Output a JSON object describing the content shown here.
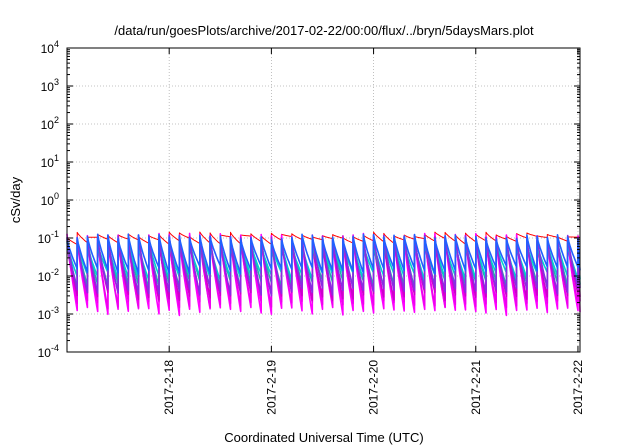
{
  "chart_data": {
    "type": "line",
    "title": "/data/run/goesPlots/archive/2017-02-22/00:00/flux/../bryn/5daysMars.plot",
    "xlabel": "Coordinated Universal Time (UTC)",
    "ylabel": "cSv/day",
    "x_range_days": [
      17.0,
      22.02
    ],
    "x_ticks": [
      {
        "value": 18,
        "label": "2017-2-18"
      },
      {
        "value": 19,
        "label": "2017-2-19"
      },
      {
        "value": 20,
        "label": "2017-2-20"
      },
      {
        "value": 21,
        "label": "2017-2-21"
      },
      {
        "value": 22,
        "label": "2017-2-22"
      }
    ],
    "y_scale": "log",
    "ylim": [
      0.0001,
      10000
    ],
    "y_ticks": [
      {
        "value": 0.0001,
        "base": "10",
        "exp": "-4"
      },
      {
        "value": 0.001,
        "base": "10",
        "exp": "-3"
      },
      {
        "value": 0.01,
        "base": "10",
        "exp": "-2"
      },
      {
        "value": 0.1,
        "base": "10",
        "exp": "-1"
      },
      {
        "value": 1,
        "base": "10",
        "exp": "0"
      },
      {
        "value": 10,
        "base": "10",
        "exp": "1"
      },
      {
        "value": 100,
        "base": "10",
        "exp": "2"
      },
      {
        "value": 1000,
        "base": "10",
        "exp": "3"
      },
      {
        "value": 10000,
        "base": "10",
        "exp": "4"
      }
    ],
    "grid": true,
    "cycle_days": 0.1,
    "series": [
      {
        "color": "#ff0000",
        "peak": 0.12,
        "trough": 0.09
      },
      {
        "color": "#ff00ff",
        "peak": 0.11,
        "trough": 0.0012
      },
      {
        "color": "#ee00ee",
        "peak": 0.1,
        "trough": 0.0018
      },
      {
        "color": "#cc00cc",
        "peak": 0.095,
        "trough": 0.003
      },
      {
        "color": "#20b2aa",
        "peak": 0.085,
        "trough": 0.006
      },
      {
        "color": "#00d0d0",
        "peak": 0.075,
        "trough": 0.01
      },
      {
        "color": "#8a2be2",
        "peak": 0.1,
        "trough": 0.004
      },
      {
        "color": "#2060ff",
        "peak": 0.105,
        "trough": 0.015
      }
    ]
  }
}
